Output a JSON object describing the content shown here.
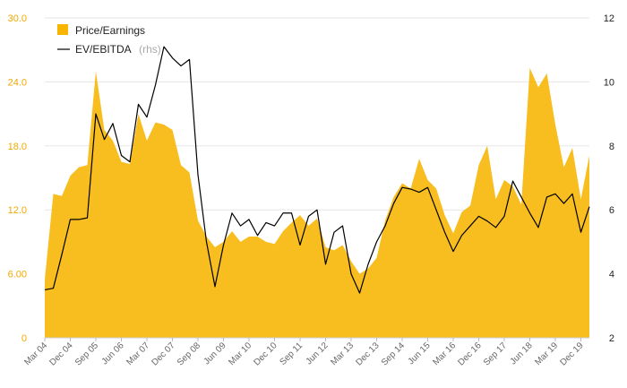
{
  "chart_data": {
    "type": "area",
    "x": [
      "Mar 04",
      "Jun 04",
      "Sep 04",
      "Dec 04",
      "Mar 05",
      "Jun 05",
      "Sep 05",
      "Dec 05",
      "Mar 06",
      "Jun 06",
      "Sep 06",
      "Dec 06",
      "Mar 07",
      "Jun 07",
      "Sep 07",
      "Dec 07",
      "Mar 08",
      "Jun 08",
      "Sep 08",
      "Dec 08",
      "Mar 09",
      "Jun 09",
      "Sep 09",
      "Dec 09",
      "Mar 10",
      "Jun 10",
      "Sep 10",
      "Dec 10",
      "Mar 11",
      "Jun 11",
      "Sep 11",
      "Dec 11",
      "Mar 12",
      "Jun 12",
      "Sep 12",
      "Dec 12",
      "Mar 13",
      "Jun 13",
      "Sep 13",
      "Dec 13",
      "Mar 14",
      "Jun 14",
      "Sep 14",
      "Dec 14",
      "Mar 15",
      "Jun 15",
      "Sep 15",
      "Dec 15",
      "Mar 16",
      "Jun 16",
      "Sep 16",
      "Dec 16",
      "Mar 17",
      "Jun 17",
      "Sep 17",
      "Dec 17",
      "Mar 18",
      "Jun 18",
      "Sep 18",
      "Dec 18",
      "Mar 19",
      "Jun 19",
      "Sep 19",
      "Dec 19",
      "Mar 20"
    ],
    "x_tick_labels": [
      "Mar 04",
      "Dec 04",
      "Sep 05",
      "Jun 06",
      "Mar 07",
      "Dec 07",
      "Sep 08",
      "Jun 09",
      "Mar 10",
      "Dec 10",
      "Sep 11",
      "Jun 12",
      "Mar 13",
      "Dec 13",
      "Sep 14",
      "Jun 15",
      "Mar 16",
      "Dec 16",
      "Sep 17",
      "Jun 18",
      "Mar 19",
      "Dec 19"
    ],
    "series": [
      {
        "name": "Price/Earnings",
        "axis": "left",
        "color": "#f7b500",
        "kind": "area",
        "values": [
          5.5,
          13.5,
          13.3,
          15.2,
          16.0,
          16.2,
          25.0,
          19.5,
          18.5,
          16.5,
          16.3,
          21.0,
          18.5,
          20.2,
          20.0,
          19.5,
          16.2,
          15.5,
          11.0,
          9.5,
          8.5,
          9.0,
          10.0,
          9.0,
          9.5,
          9.5,
          9.0,
          8.8,
          10.0,
          10.8,
          11.5,
          10.5,
          11.2,
          8.5,
          8.2,
          8.7,
          7.2,
          6.0,
          6.5,
          7.5,
          11.0,
          13.2,
          14.5,
          14.0,
          16.8,
          14.8,
          14.0,
          11.5,
          9.8,
          11.8,
          12.4,
          16.2,
          18.0,
          13.0,
          14.8,
          14.2,
          12.5,
          25.3,
          23.5,
          24.8,
          20.0,
          16.0,
          17.8,
          13.0,
          17.1
        ]
      },
      {
        "name": "EV/EBITDA",
        "axis": "right",
        "color": "#000000",
        "kind": "line",
        "values": [
          3.5,
          3.55,
          4.6,
          5.7,
          5.7,
          5.75,
          9.0,
          8.2,
          8.7,
          7.7,
          7.5,
          9.3,
          8.9,
          9.9,
          11.1,
          10.75,
          10.5,
          10.7,
          7.1,
          5.0,
          3.6,
          4.9,
          5.9,
          5.5,
          5.7,
          5.2,
          5.6,
          5.5,
          5.9,
          5.9,
          4.9,
          5.8,
          6.0,
          4.3,
          5.3,
          5.5,
          4.0,
          3.4,
          4.3,
          5.0,
          5.5,
          6.2,
          6.7,
          6.65,
          6.55,
          6.7,
          6.0,
          5.3,
          4.7,
          5.2,
          5.5,
          5.8,
          5.65,
          5.45,
          5.8,
          6.9,
          6.4,
          5.9,
          5.45,
          6.4,
          6.5,
          6.2,
          6.5,
          5.3,
          6.1
        ]
      }
    ],
    "legend": {
      "position": "top-left",
      "items": [
        {
          "label": "Price/Earnings",
          "suffix": ""
        },
        {
          "label": "EV/EBITDA",
          "suffix": "(rhs)"
        }
      ]
    },
    "y_left": {
      "min": 0,
      "max": 30,
      "ticks": [
        "0",
        "6.00",
        "12.0",
        "18.0",
        "24.0",
        "30.0"
      ],
      "tick_values": [
        0,
        6,
        12,
        18,
        24,
        30
      ],
      "color": "#f2a900"
    },
    "y_right": {
      "min": 2,
      "max": 12,
      "ticks": [
        "2",
        "4",
        "6",
        "8",
        "10",
        "12"
      ],
      "tick_values": [
        2,
        4,
        6,
        8,
        10,
        12
      ],
      "color": "#222222"
    },
    "grid": true,
    "title": "",
    "xlabel": "",
    "ylabel": ""
  }
}
